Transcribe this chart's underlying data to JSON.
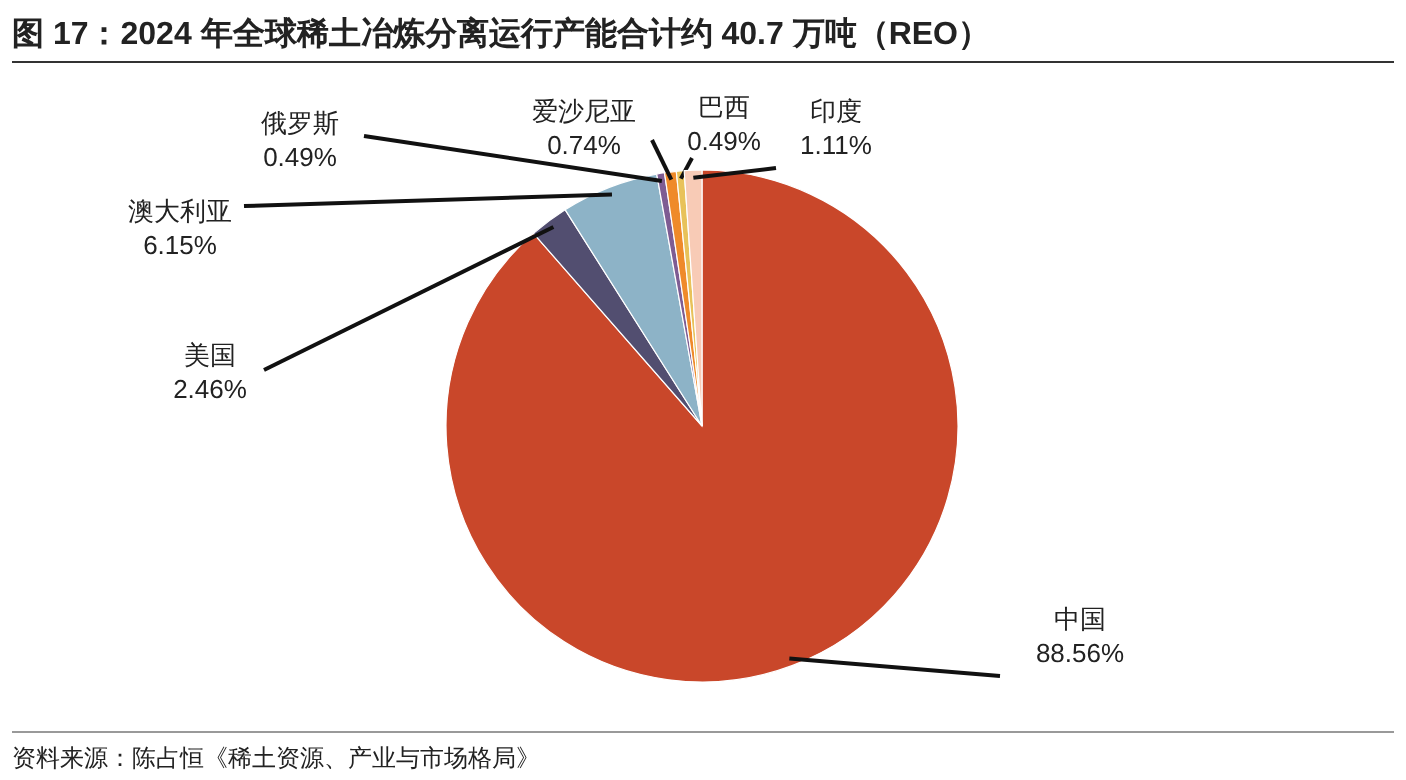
{
  "chart_data": {
    "type": "pie",
    "title": "图 17：2024 年全球稀土冶炼分离运行产能合计约 40.7 万吨（REO）",
    "categories": [
      "中国",
      "美国",
      "澳大利亚",
      "俄罗斯",
      "爱沙尼亚",
      "巴西",
      "印度"
    ],
    "values": [
      88.56,
      2.46,
      6.15,
      0.49,
      0.74,
      0.49,
      1.11
    ],
    "value_labels": [
      "88.56%",
      "2.46%",
      "6.15%",
      "0.49%",
      "0.74%",
      "0.49%",
      "1.11%"
    ],
    "colors": [
      "#c9472a",
      "#524e70",
      "#8db3c7",
      "#7e5c93",
      "#ef8a2a",
      "#e8c25a",
      "#f8cbb6"
    ],
    "annotations": [
      "资料来源：陈占恒《稀土资源、产业与市场格局》"
    ]
  }
}
